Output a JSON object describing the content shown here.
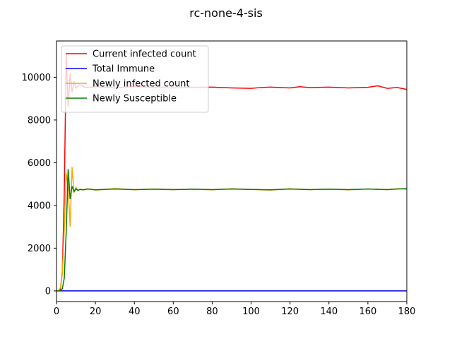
{
  "chart_data": {
    "type": "line",
    "title": "rc-none-4-sis",
    "xlabel": "",
    "ylabel": "",
    "xlim": [
      0,
      180
    ],
    "ylim": [
      -500,
      11700
    ],
    "xticks": [
      0,
      20,
      40,
      60,
      80,
      100,
      120,
      140,
      160,
      180
    ],
    "yticks": [
      0,
      2000,
      4000,
      6000,
      8000,
      10000
    ],
    "legend_position": "top-left",
    "grid": false,
    "series": [
      {
        "name": "Current infected count",
        "color": "#ff0000",
        "points": [
          [
            0,
            0
          ],
          [
            1,
            5
          ],
          [
            2,
            60
          ],
          [
            3,
            900
          ],
          [
            4,
            4600
          ],
          [
            5,
            11100
          ],
          [
            6,
            8600
          ],
          [
            7,
            10200
          ],
          [
            8,
            9300
          ],
          [
            9,
            9800
          ],
          [
            10,
            9500
          ],
          [
            12,
            9650
          ],
          [
            15,
            9520
          ],
          [
            20,
            9560
          ],
          [
            30,
            9500
          ],
          [
            40,
            9570
          ],
          [
            50,
            9520
          ],
          [
            60,
            9500
          ],
          [
            70,
            9530
          ],
          [
            80,
            9540
          ],
          [
            90,
            9500
          ],
          [
            100,
            9480
          ],
          [
            105,
            9520
          ],
          [
            110,
            9540
          ],
          [
            120,
            9500
          ],
          [
            125,
            9560
          ],
          [
            130,
            9520
          ],
          [
            140,
            9540
          ],
          [
            150,
            9500
          ],
          [
            160,
            9530
          ],
          [
            165,
            9600
          ],
          [
            170,
            9480
          ],
          [
            175,
            9520
          ],
          [
            180,
            9430
          ]
        ]
      },
      {
        "name": "Total Immune",
        "color": "#0000ff",
        "points": [
          [
            0,
            0
          ],
          [
            180,
            0
          ]
        ]
      },
      {
        "name": "Newly infected count",
        "color": "#ffa500",
        "points": [
          [
            0,
            0
          ],
          [
            1,
            10
          ],
          [
            2,
            150
          ],
          [
            3,
            800
          ],
          [
            4,
            2900
          ],
          [
            5,
            5500
          ],
          [
            6,
            4900
          ],
          [
            7,
            3000
          ],
          [
            8,
            5800
          ],
          [
            9,
            4600
          ],
          [
            10,
            4850
          ],
          [
            11,
            4700
          ],
          [
            12,
            4760
          ],
          [
            14,
            4740
          ],
          [
            16,
            4780
          ],
          [
            20,
            4720
          ],
          [
            30,
            4790
          ],
          [
            40,
            4730
          ],
          [
            50,
            4770
          ],
          [
            60,
            4740
          ],
          [
            70,
            4760
          ],
          [
            80,
            4730
          ],
          [
            90,
            4780
          ],
          [
            100,
            4750
          ],
          [
            110,
            4720
          ],
          [
            120,
            4780
          ],
          [
            130,
            4740
          ],
          [
            140,
            4760
          ],
          [
            150,
            4730
          ],
          [
            160,
            4770
          ],
          [
            170,
            4740
          ],
          [
            175,
            4780
          ],
          [
            180,
            4760
          ]
        ]
      },
      {
        "name": "Newly Susceptible",
        "color": "#008000",
        "points": [
          [
            0,
            0
          ],
          [
            1,
            0
          ],
          [
            2,
            5
          ],
          [
            3,
            100
          ],
          [
            4,
            600
          ],
          [
            5,
            2800
          ],
          [
            6,
            5700
          ],
          [
            7,
            4300
          ],
          [
            8,
            4900
          ],
          [
            9,
            4650
          ],
          [
            10,
            4780
          ],
          [
            11,
            4700
          ],
          [
            12,
            4750
          ],
          [
            14,
            4730
          ],
          [
            16,
            4770
          ],
          [
            20,
            4730
          ],
          [
            30,
            4770
          ],
          [
            40,
            4740
          ],
          [
            50,
            4760
          ],
          [
            60,
            4740
          ],
          [
            70,
            4760
          ],
          [
            80,
            4740
          ],
          [
            90,
            4770
          ],
          [
            100,
            4750
          ],
          [
            110,
            4730
          ],
          [
            120,
            4770
          ],
          [
            130,
            4740
          ],
          [
            140,
            4760
          ],
          [
            150,
            4740
          ],
          [
            160,
            4770
          ],
          [
            170,
            4740
          ],
          [
            175,
            4770
          ],
          [
            180,
            4790
          ]
        ]
      }
    ]
  }
}
